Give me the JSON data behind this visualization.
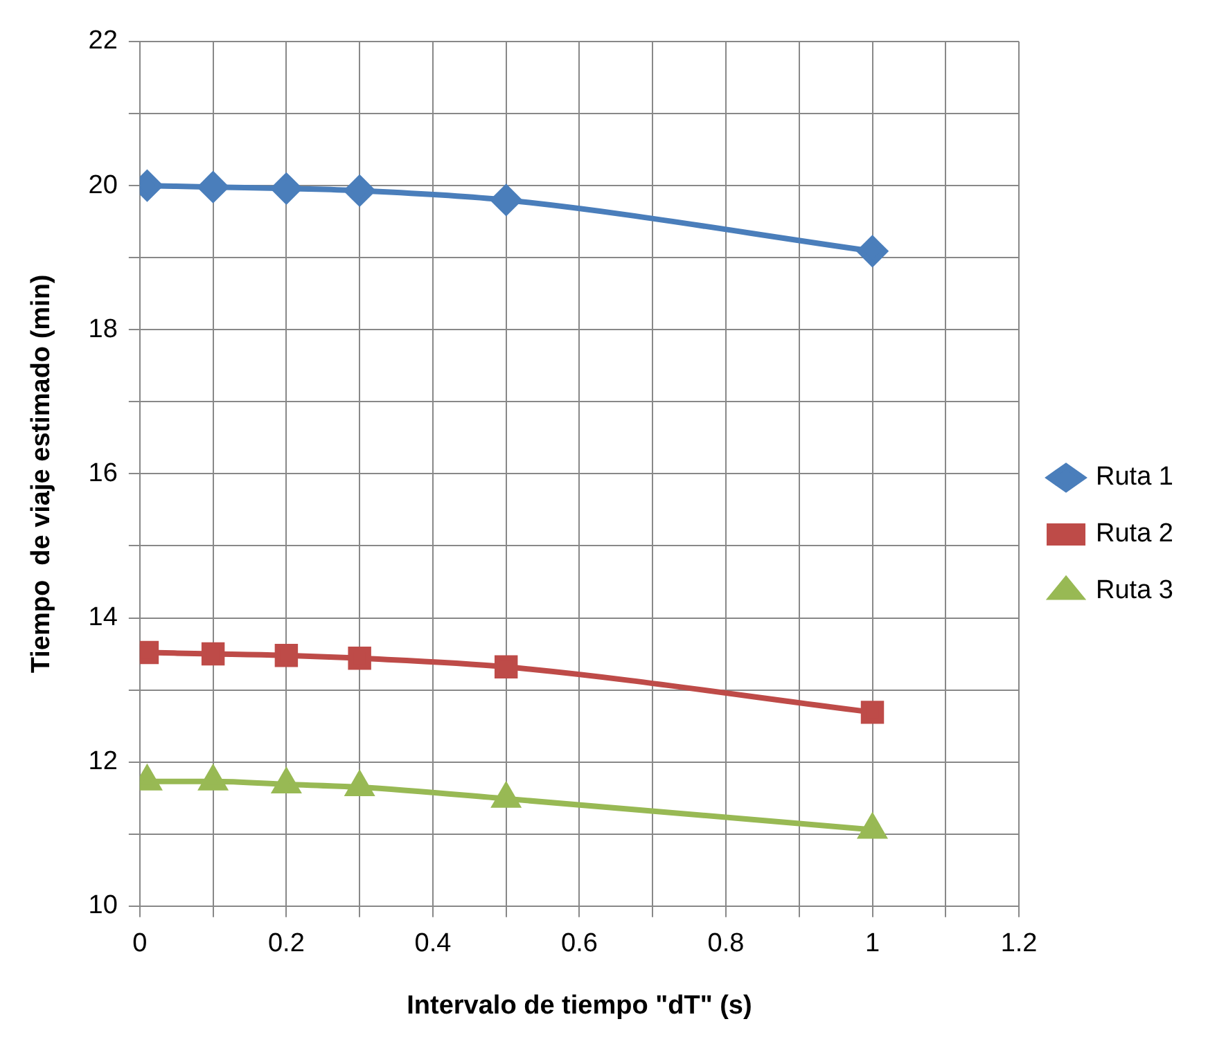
{
  "chart_data": {
    "type": "line",
    "xlabel": "Intervalo de tiempo \"dT\" (s)",
    "ylabel": "Tiempo  de viaje estimado (min)",
    "x": [
      0.01,
      0.1,
      0.2,
      0.3,
      0.5,
      1
    ],
    "series": [
      {
        "name": "Ruta 1",
        "color": "#4a7ebb",
        "marker": "diamond",
        "values": [
          20.0,
          19.98,
          19.96,
          19.93,
          19.8,
          19.09
        ]
      },
      {
        "name": "Ruta 2",
        "color": "#be4b48",
        "marker": "square",
        "values": [
          13.52,
          13.5,
          13.48,
          13.44,
          13.32,
          12.69
        ]
      },
      {
        "name": "Ruta 3",
        "color": "#98b954",
        "marker": "triangle",
        "values": [
          11.73,
          11.73,
          11.69,
          11.65,
          11.49,
          11.06
        ]
      }
    ],
    "xlim": [
      0,
      1.2
    ],
    "xticks": [
      0,
      {
        "value": 0.1,
        "label": null
      },
      0.2,
      {
        "value": 0.3,
        "label": null
      },
      0.4,
      {
        "value": 0.5,
        "label": null
      },
      0.6,
      {
        "value": 0.7,
        "label": null
      },
      0.8,
      {
        "value": 0.9,
        "label": null
      },
      1,
      {
        "value": 1.1,
        "label": null
      },
      1.2
    ],
    "ylim": [
      10,
      22
    ],
    "yticks": [
      10,
      {
        "value": 11,
        "label": null
      },
      12,
      {
        "value": 13,
        "label": null
      },
      14,
      {
        "value": 15,
        "label": null
      },
      16,
      {
        "value": 17,
        "label": null
      },
      18,
      {
        "value": 19,
        "label": null
      },
      20,
      {
        "value": 21,
        "label": null
      },
      22
    ],
    "grid": true,
    "legend": "right",
    "line_style": "solid"
  }
}
